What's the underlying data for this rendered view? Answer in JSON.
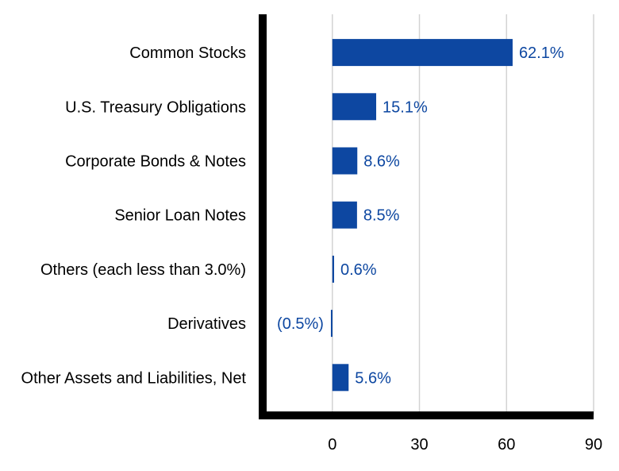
{
  "chart_data": {
    "type": "bar",
    "orientation": "horizontal",
    "categories": [
      "Common Stocks",
      "U.S. Treasury Obligations",
      "Corporate Bonds & Notes",
      "Senior Loan Notes",
      "Others (each less than 3.0%)",
      "Derivatives",
      "Other Assets and Liabilities, Net"
    ],
    "values": [
      62.1,
      15.1,
      8.6,
      8.5,
      0.6,
      -0.5,
      5.6
    ],
    "data_labels": [
      "62.1%",
      "15.1%",
      "8.6%",
      "8.5%",
      "0.6%",
      "(0.5%)",
      "5.6%"
    ],
    "xlim": [
      -24,
      90
    ],
    "xticks": [
      0,
      30,
      60,
      90
    ],
    "xtick_labels": [
      "0",
      "30",
      "60",
      "90"
    ],
    "grid": true,
    "legend": "none",
    "colors": {
      "bar": "#0d47a1",
      "label": "#0d47a1",
      "axis": "#000000",
      "grid": "#d3d3d3",
      "text": "#000000"
    }
  }
}
